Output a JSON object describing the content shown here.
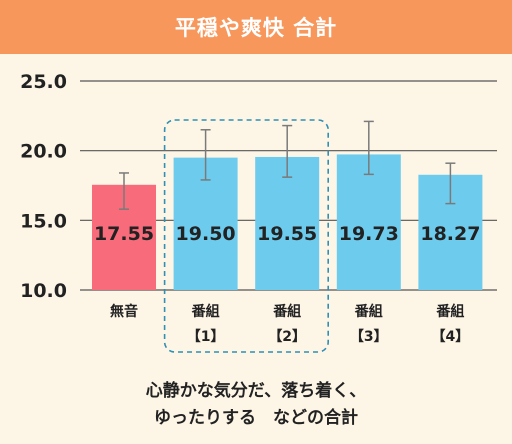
{
  "chart_data": {
    "type": "bar",
    "title": "平穏や爽快 合計",
    "categories": [
      {
        "line1": "無音",
        "line2": ""
      },
      {
        "line1": "番組",
        "line2": "【1】"
      },
      {
        "line1": "番組",
        "line2": "【2】"
      },
      {
        "line1": "番組",
        "line2": "【3】"
      },
      {
        "line1": "番組",
        "line2": "【4】"
      }
    ],
    "values": [
      17.55,
      19.5,
      19.55,
      19.73,
      18.27
    ],
    "value_labels": [
      "17.55",
      "19.50",
      "19.55",
      "19.73",
      "18.27"
    ],
    "error_low": [
      15.8,
      17.9,
      18.1,
      18.3,
      16.2
    ],
    "error_high": [
      18.4,
      21.5,
      21.8,
      22.1,
      19.1
    ],
    "ylim": [
      10.0,
      25.0
    ],
    "yticks": [
      "25.0",
      "20.0",
      "15.0",
      "10.0"
    ],
    "ytick_values": [
      25,
      20,
      15,
      10
    ],
    "grid": true,
    "highlight_group": [
      1,
      2
    ],
    "colors": {
      "header": "#f8975b",
      "background": "#fdf6e7",
      "silent_bar": "#f86b7a",
      "program_bar": "#6dcbee",
      "highlight_box": "#2f8fb4",
      "grid": "#555555"
    }
  },
  "caption": {
    "line1": "心静かな気分だ、落ち着く、",
    "line2": "ゆったりする　などの合計"
  }
}
